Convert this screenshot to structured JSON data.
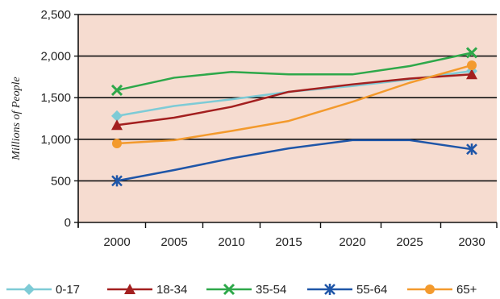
{
  "chart_data": {
    "type": "line",
    "title": "",
    "xlabel": "",
    "ylabel": "Millions of People",
    "categories": [
      "2000",
      "2005",
      "2010",
      "2015",
      "2020",
      "2025",
      "2030"
    ],
    "y_ticks": [
      "0",
      "500",
      "1,000",
      "1,500",
      "2,000",
      "2,500"
    ],
    "ylim": [
      0,
      2500
    ],
    "grid": "horizontal",
    "plot_background": "#f6dcd0",
    "legend_position": "bottom",
    "series": [
      {
        "name": "0-17",
        "color": "#7ecbd6",
        "marker": "diamond",
        "values": [
          1280,
          1400,
          1480,
          1570,
          1640,
          1720,
          1820
        ]
      },
      {
        "name": "18-34",
        "color": "#a31f1f",
        "marker": "triangle",
        "values": [
          1170,
          1260,
          1390,
          1570,
          1660,
          1730,
          1780
        ]
      },
      {
        "name": "35-54",
        "color": "#2ea84a",
        "marker": "x",
        "values": [
          1590,
          1740,
          1810,
          1780,
          1780,
          1880,
          2040
        ]
      },
      {
        "name": "55-64",
        "color": "#1f56a8",
        "marker": "star",
        "values": [
          500,
          630,
          770,
          890,
          990,
          990,
          880
        ]
      },
      {
        "name": "65+",
        "color": "#f39a2d",
        "marker": "circle",
        "values": [
          950,
          990,
          1100,
          1220,
          1450,
          1680,
          1890
        ]
      }
    ]
  }
}
